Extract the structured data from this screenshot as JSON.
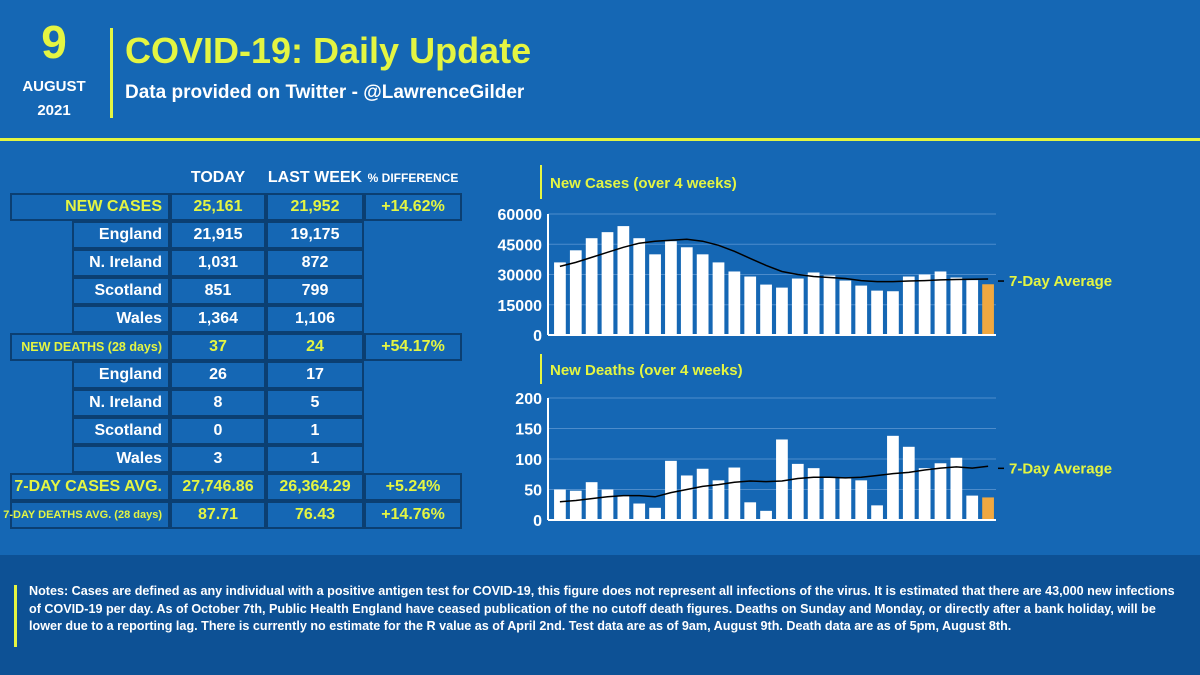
{
  "header": {
    "day": "9",
    "month": "AUGUST",
    "year": "2021",
    "title": "COVID-19: Daily Update",
    "subtitle": "Data provided on Twitter - @LawrenceGilder"
  },
  "colors": {
    "accent": "#e4f542",
    "background": "#1567b4",
    "cell_border": "#0b3f72",
    "latest_bar": "#f0a840",
    "footer_bg": "#0d5195"
  },
  "table": {
    "headers": {
      "today": "TODAY",
      "last_week": "LAST WEEK",
      "diff": "% DIFFERENCE"
    },
    "rows": [
      {
        "label": "NEW CASES",
        "today": "25,161",
        "last_week": "21,952",
        "diff": "+14.62%"
      },
      {
        "label": "England",
        "today": "21,915",
        "last_week": "19,175"
      },
      {
        "label": "N. Ireland",
        "today": "1,031",
        "last_week": "872"
      },
      {
        "label": "Scotland",
        "today": "851",
        "last_week": "799"
      },
      {
        "label": "Wales",
        "today": "1,364",
        "last_week": "1,106"
      },
      {
        "label": "NEW DEATHS (28 days)",
        "today": "37",
        "last_week": "24",
        "diff": "+54.17%"
      },
      {
        "label": "England",
        "today": "26",
        "last_week": "17"
      },
      {
        "label": "N. Ireland",
        "today": "8",
        "last_week": "5"
      },
      {
        "label": "Scotland",
        "today": "0",
        "last_week": "1"
      },
      {
        "label": "Wales",
        "today": "3",
        "last_week": "1"
      },
      {
        "label": "7-DAY CASES AVG.",
        "today": "27,746.86",
        "last_week": "26,364.29",
        "diff": "+5.24%"
      },
      {
        "label": "7-DAY DEATHS AVG. (28 days)",
        "today": "87.71",
        "last_week": "76.43",
        "diff": "+14.76%"
      }
    ]
  },
  "chart_data": [
    {
      "type": "bar",
      "title": "New Cases (over 4 weeks)",
      "ylim": [
        0,
        60000
      ],
      "yticks": [
        "0",
        "15000",
        "30000",
        "45000",
        "60000"
      ],
      "values": [
        36000,
        42000,
        48000,
        51000,
        54000,
        48000,
        40000,
        46500,
        43500,
        40000,
        36000,
        31500,
        29000,
        25000,
        23500,
        28000,
        31000,
        29500,
        27000,
        24500,
        22000,
        21700,
        29000,
        30000,
        31500,
        28500,
        27200,
        25161
      ],
      "avg_values": [
        34000,
        36000,
        38500,
        41000,
        43500,
        45500,
        46500,
        47000,
        47500,
        46500,
        44500,
        41500,
        38000,
        34500,
        31500,
        30000,
        29000,
        28500,
        28000,
        27000,
        26500,
        26500,
        26800,
        27000,
        27300,
        27500,
        27600,
        27747
      ],
      "avg_label": "7-Day Average",
      "grid": true
    },
    {
      "type": "bar",
      "title": "New Deaths (over 4 weeks)",
      "ylim": [
        0,
        200
      ],
      "yticks": [
        "0",
        "50",
        "100",
        "150",
        "200"
      ],
      "values": [
        50,
        48,
        62,
        50,
        40,
        27,
        20,
        97,
        73,
        84,
        65,
        86,
        29,
        15,
        132,
        92,
        85,
        70,
        68,
        65,
        24,
        138,
        120,
        85,
        93,
        102,
        40,
        37
      ],
      "avg_values": [
        30,
        32,
        35,
        38,
        40,
        40,
        38,
        45,
        50,
        55,
        58,
        62,
        64,
        63,
        64,
        68,
        70,
        70,
        69,
        70,
        73,
        76,
        78,
        82,
        85,
        87,
        85,
        88
      ],
      "avg_label": "7-Day Average",
      "grid": true
    }
  ],
  "footer": {
    "notes": "Notes: Cases are defined as any individual with a positive antigen test for COVID-19, this figure does not represent all infections of the virus. It is estimated that there are 43,000 new infections of COVID-19 per day. As of October 7th, Public Health England have ceased publication of the no cutoff death figures. Deaths on Sunday and Monday, or directly after a bank holiday, will be lower due to a reporting lag. There is currently no estimate for the R value as of April 2nd. Test data are as of 9am, August 9th.  Death data are as of 5pm, August 8th."
  }
}
